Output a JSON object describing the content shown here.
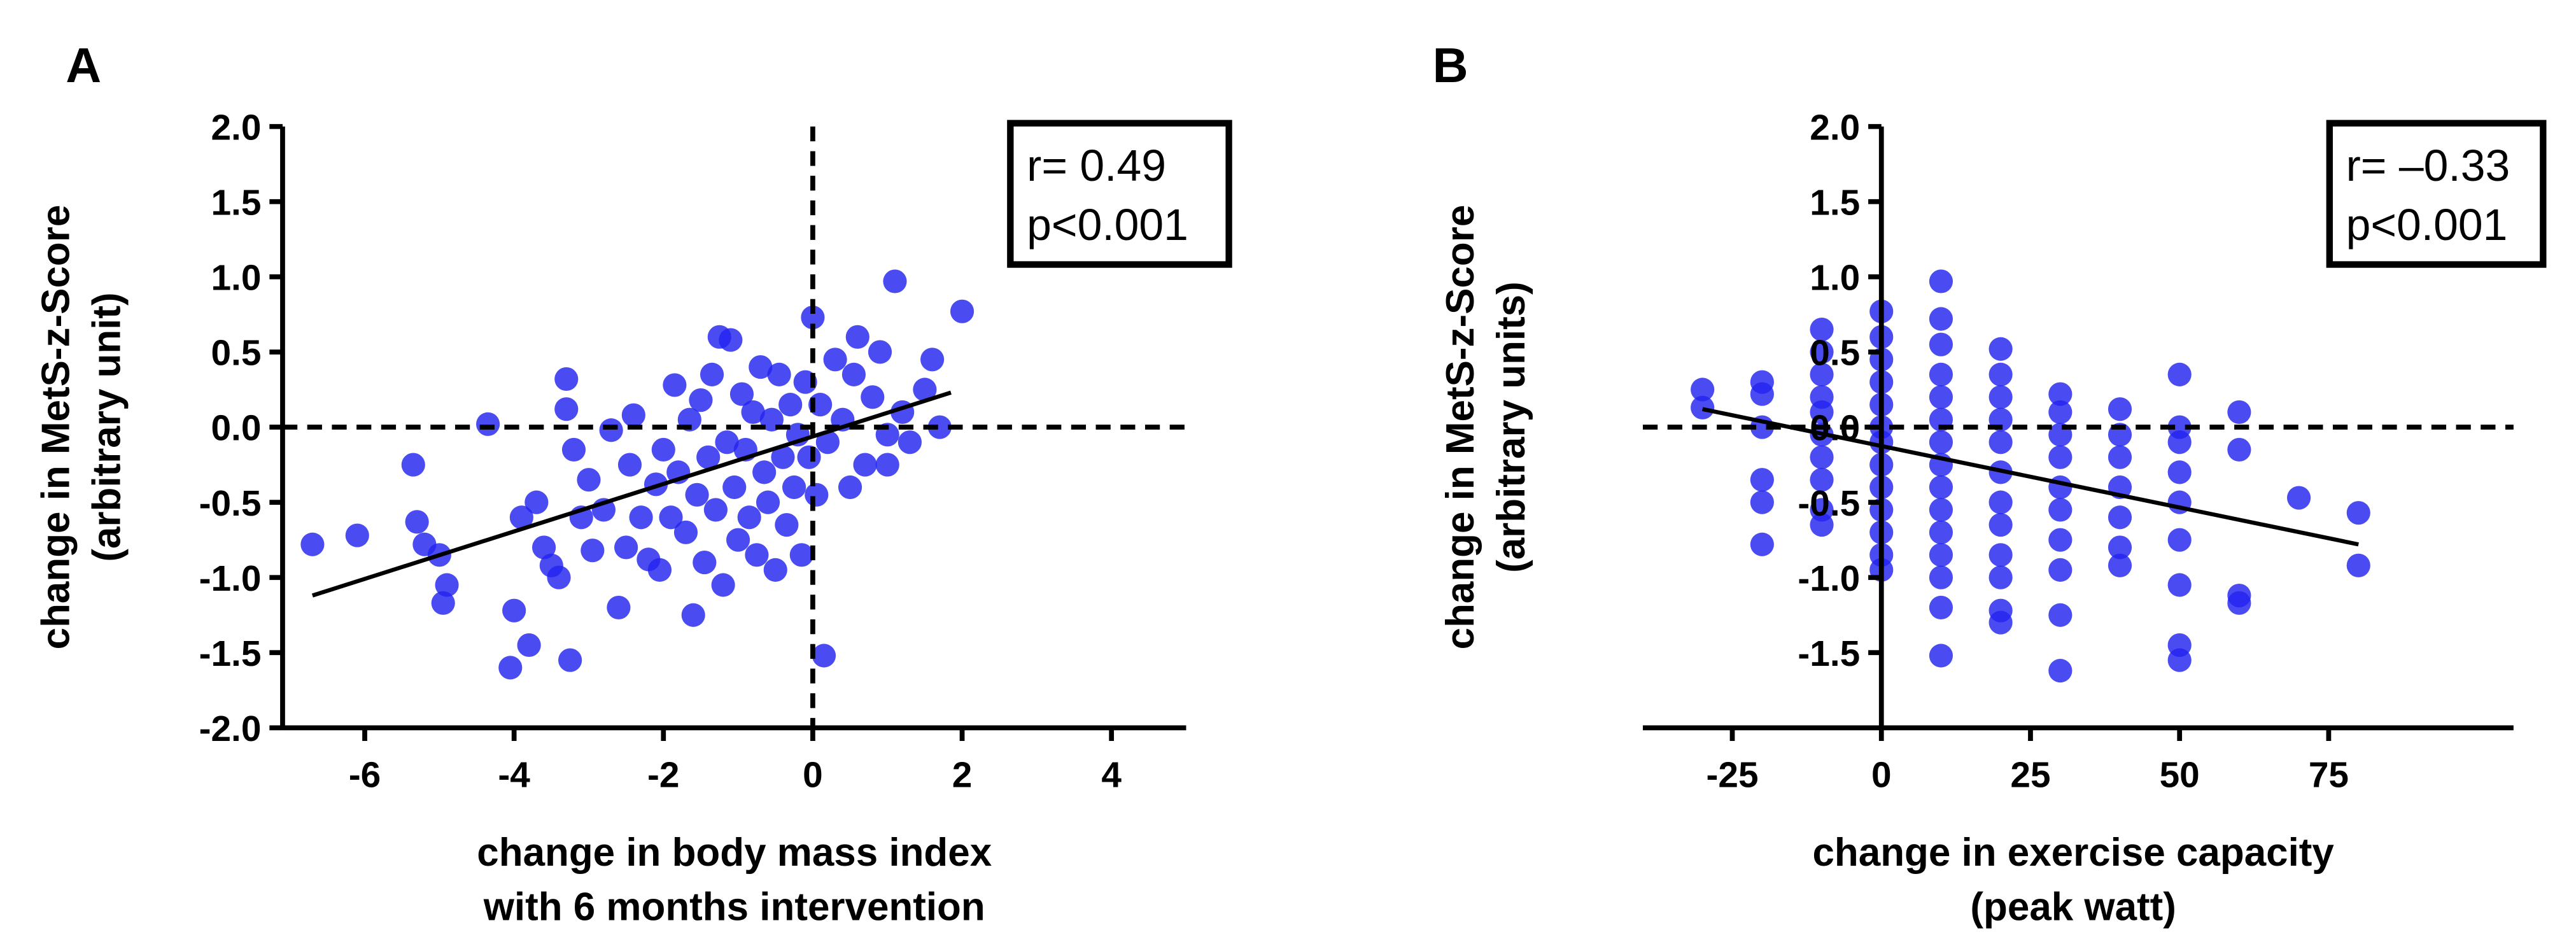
{
  "chart_data": [
    {
      "type": "scatter",
      "label": "A",
      "annotation": [
        "r= 0.49",
        "p<0.001"
      ],
      "x_label": [
        "change in body mass index",
        "with 6 months intervention"
      ],
      "y_label": [
        "change in MetS-z-Score",
        "(arbitrary unit)"
      ],
      "color": "#2323ef",
      "xlim": [
        -7.1,
        5
      ],
      "ylim": [
        -2,
        2
      ],
      "xticks": [
        -6,
        -4,
        -2,
        0,
        2,
        4
      ],
      "yticks": [
        {
          "value": 2,
          "label": "2.0"
        },
        1.5,
        {
          "value": 1,
          "label": "1.0"
        },
        0.5,
        {
          "value": 0,
          "label": "0.0"
        },
        -0.5,
        {
          "value": -1,
          "label": "-1.0"
        },
        -1.5,
        {
          "value": -2,
          "label": "-2.0"
        }
      ],
      "hlines": [
        0
      ],
      "vlines": [
        0
      ],
      "fit": {
        "x": [
          -6.7,
          1.85
        ],
        "y": [
          -1.12,
          0.23
        ]
      },
      "x": [
        -6.7,
        -6.1,
        -5.35,
        -5.3,
        -5.2,
        -5.0,
        -4.9,
        -4.95,
        -4.35,
        -4.0,
        -4.05,
        -3.8,
        -3.9,
        -3.7,
        -3.6,
        -3.5,
        -3.4,
        -3.3,
        -3.3,
        -3.2,
        -3.25,
        -3.1,
        -3.0,
        -2.95,
        -2.8,
        -2.7,
        -2.6,
        -2.5,
        -2.45,
        -2.4,
        -2.3,
        -2.2,
        -2.1,
        -2.05,
        -2.0,
        -1.9,
        -1.85,
        -1.8,
        -1.7,
        -1.65,
        -1.6,
        -1.55,
        -1.5,
        -1.45,
        -1.4,
        -1.35,
        -1.3,
        -1.25,
        -1.2,
        -1.15,
        -1.1,
        -1.05,
        -1.0,
        -0.95,
        -0.9,
        -0.85,
        -0.8,
        -0.75,
        -0.7,
        -0.65,
        -0.6,
        -0.55,
        -0.5,
        -0.45,
        -0.4,
        -0.35,
        -0.3,
        -0.25,
        -0.2,
        -0.15,
        -0.1,
        -0.05,
        0.0,
        0.05,
        0.1,
        0.15,
        0.2,
        0.3,
        0.4,
        0.5,
        0.55,
        0.6,
        0.7,
        0.8,
        0.9,
        1.0,
        1.1,
        1.2,
        1.3,
        1.5,
        1.6,
        1.7,
        1.0,
        2.0
      ],
      "y": [
        -0.78,
        -0.72,
        -0.25,
        -0.63,
        -0.78,
        -0.85,
        -1.05,
        -1.17,
        0.02,
        -1.22,
        -1.6,
        -1.45,
        -0.6,
        -0.5,
        -0.8,
        -0.92,
        -1.0,
        0.32,
        0.12,
        -0.15,
        -1.55,
        -0.6,
        -0.35,
        -0.82,
        -0.55,
        -0.02,
        -1.2,
        -0.8,
        -0.25,
        0.08,
        -0.6,
        -0.88,
        -0.38,
        -0.95,
        -0.15,
        -0.6,
        0.28,
        -0.3,
        -0.7,
        0.05,
        -1.25,
        -0.45,
        0.18,
        -0.9,
        -0.2,
        0.35,
        -0.55,
        0.6,
        -1.05,
        -0.1,
        0.58,
        -0.4,
        -0.75,
        0.22,
        -0.15,
        -0.6,
        0.1,
        -0.85,
        0.4,
        -0.3,
        -0.5,
        0.05,
        -0.95,
        0.35,
        -0.2,
        -0.65,
        0.15,
        -0.4,
        -0.05,
        -0.85,
        0.3,
        -0.2,
        0.73,
        -0.45,
        0.15,
        -1.52,
        -0.1,
        0.45,
        0.05,
        -0.4,
        0.35,
        0.6,
        -0.25,
        0.2,
        0.5,
        -0.05,
        0.97,
        0.1,
        -0.1,
        0.25,
        0.45,
        0.0,
        -0.25,
        0.77
      ]
    },
    {
      "type": "scatter",
      "label": "B",
      "annotation": [
        "r= –0.33",
        "p<0.001"
      ],
      "x_label": [
        "change in exercise capacity",
        "(peak watt)"
      ],
      "y_label": [
        "change in MetS-z-Score",
        "(arbitrary units)"
      ],
      "color": "#2323ef",
      "xlim": [
        -40,
        106
      ],
      "ylim": [
        -2,
        2
      ],
      "xticks": [
        -25,
        0,
        25,
        50,
        75
      ],
      "yticks": [
        {
          "value": 2,
          "label": "2.0"
        },
        1.5,
        {
          "value": 1,
          "label": "1.0"
        },
        0.5,
        {
          "value": 0,
          "label": "0.0"
        },
        -0.5,
        {
          "value": -1,
          "label": "-1.0"
        },
        -1.5
      ],
      "hlines": [
        0
      ],
      "fit": {
        "x": [
          -30,
          80
        ],
        "y": [
          0.12,
          -0.78
        ]
      },
      "x": [
        -30,
        -30,
        -20,
        -20,
        -20,
        -20,
        -20,
        -20,
        -10,
        -10,
        -10,
        -10,
        -10,
        -10,
        -10,
        -10,
        -10,
        -10,
        0,
        0,
        0,
        0,
        0,
        0,
        0,
        0,
        0,
        0,
        0,
        0,
        0,
        10,
        10,
        10,
        10,
        10,
        10,
        10,
        10,
        10,
        10,
        10,
        10,
        10,
        10,
        10,
        20,
        20,
        20,
        20,
        20,
        20,
        20,
        20,
        20,
        20,
        20,
        20,
        30,
        30,
        30,
        30,
        30,
        30,
        30,
        30,
        30,
        30,
        40,
        40,
        40,
        40,
        40,
        40,
        40,
        50,
        50,
        50,
        50,
        50,
        50,
        50,
        50,
        50,
        60,
        60,
        60,
        60,
        70,
        80,
        80
      ],
      "y": [
        0.25,
        0.13,
        0.3,
        0.22,
        0.0,
        -0.35,
        -0.5,
        -0.78,
        0.65,
        0.5,
        0.35,
        0.2,
        0.1,
        -0.05,
        -0.2,
        -0.35,
        -0.55,
        -0.65,
        0.77,
        0.6,
        0.45,
        0.3,
        0.15,
        0.0,
        -0.1,
        -0.25,
        -0.4,
        -0.55,
        -0.7,
        -0.85,
        -0.95,
        0.97,
        0.72,
        0.55,
        0.35,
        0.2,
        0.05,
        -0.1,
        -0.25,
        -0.4,
        -0.55,
        -0.7,
        -0.85,
        -1.0,
        -1.2,
        -1.52,
        0.52,
        0.35,
        0.2,
        0.05,
        -0.1,
        -0.3,
        -0.5,
        -0.65,
        -0.85,
        -1.0,
        -1.22,
        -1.3,
        0.22,
        0.1,
        -0.05,
        -0.2,
        -0.4,
        -0.55,
        -0.75,
        -0.95,
        -1.25,
        -1.62,
        0.12,
        -0.05,
        -0.2,
        -0.4,
        -0.6,
        -0.8,
        -0.92,
        0.35,
        0.0,
        -0.1,
        -0.3,
        -0.5,
        -0.75,
        -1.05,
        -1.45,
        -1.55,
        0.1,
        -0.15,
        -1.12,
        -1.17,
        -0.47,
        -0.57,
        -0.92
      ]
    }
  ]
}
